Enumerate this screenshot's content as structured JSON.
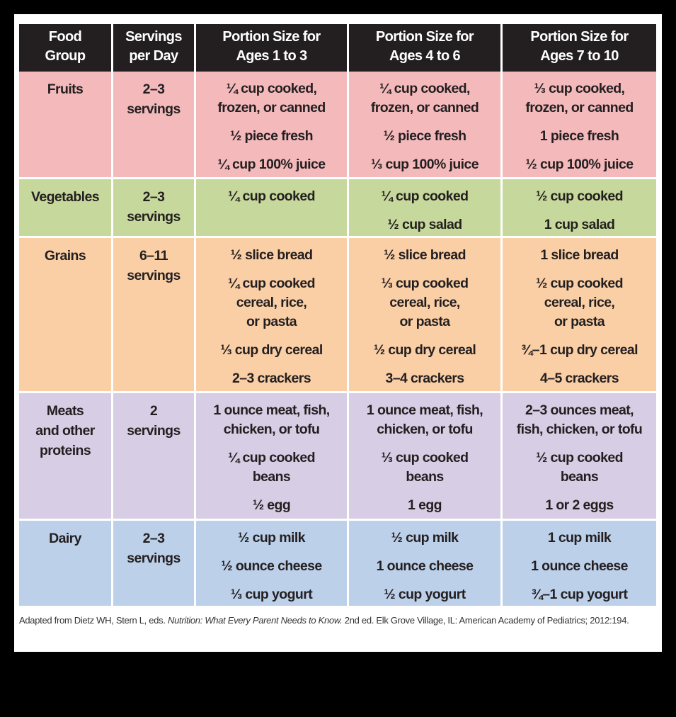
{
  "headers": [
    "Food\nGroup",
    "Servings\nper Day",
    "Portion Size for\nAges 1 to 3",
    "Portion Size for\nAges 4 to 6",
    "Portion Size for\nAges 7 to 10"
  ],
  "row_colors": {
    "fruits": "#f4b9bb",
    "vegetables": "#c6d89b",
    "grains": "#fbcfa6",
    "meats": "#d7cde4",
    "dairy": "#bdd0ea",
    "header": "#231f20"
  },
  "rows": [
    {
      "group": "Fruits",
      "servings": "2–3\nservings",
      "ages_1_3": [
        "¼ cup cooked,\nfrozen, or canned",
        "½ piece fresh",
        "¼ cup 100% juice"
      ],
      "ages_4_6": [
        "¼ cup cooked,\nfrozen, or canned",
        "½ piece fresh",
        "⅓ cup 100% juice"
      ],
      "ages_7_10": [
        "⅓ cup cooked,\nfrozen, or canned",
        "1 piece fresh",
        "½ cup 100% juice"
      ]
    },
    {
      "group": "Vegetables",
      "servings": "2–3\nservings",
      "ages_1_3": [
        "¼ cup cooked"
      ],
      "ages_4_6": [
        "¼ cup cooked",
        "½ cup salad"
      ],
      "ages_7_10": [
        "½ cup cooked",
        "1 cup salad"
      ]
    },
    {
      "group": "Grains",
      "servings": "6–11\nservings",
      "ages_1_3": [
        "½ slice bread",
        "¼ cup cooked\ncereal, rice,\nor pasta",
        "⅓ cup dry cereal",
        "2–3 crackers"
      ],
      "ages_4_6": [
        "½ slice bread",
        "⅓ cup cooked\ncereal, rice,\nor pasta",
        "½ cup dry cereal",
        "3–4 crackers"
      ],
      "ages_7_10": [
        "1 slice bread",
        "½ cup cooked\ncereal, rice,\nor pasta",
        "¾–1 cup dry cereal",
        "4–5 crackers"
      ]
    },
    {
      "group": "Meats\nand other\nproteins",
      "servings": "2\nservings",
      "ages_1_3": [
        "1 ounce meat, fish,\nchicken, or tofu",
        "¼ cup cooked\nbeans",
        "½ egg"
      ],
      "ages_4_6": [
        "1 ounce meat, fish,\nchicken, or tofu",
        "⅓ cup cooked\nbeans",
        "1 egg"
      ],
      "ages_7_10": [
        "2–3 ounces meat,\nfish, chicken, or tofu",
        "½ cup cooked\nbeans",
        "1 or 2 eggs"
      ]
    },
    {
      "group": "Dairy",
      "servings": "2–3\nservings",
      "ages_1_3": [
        "½ cup milk",
        "½ ounce cheese",
        "⅓ cup yogurt"
      ],
      "ages_4_6": [
        "½ cup milk",
        "1 ounce cheese",
        "½ cup yogurt"
      ],
      "ages_7_10": [
        "1 cup milk",
        "1 ounce cheese",
        "¾–1 cup yogurt"
      ]
    }
  ],
  "footnote": {
    "prefix": "Adapted from Dietz WH, Stern L, eds. ",
    "title": "Nutrition: What Every Parent Needs to Know.",
    "suffix": " 2nd ed. Elk Grove Village, IL: American Academy of Pediatrics; 2012:194."
  }
}
